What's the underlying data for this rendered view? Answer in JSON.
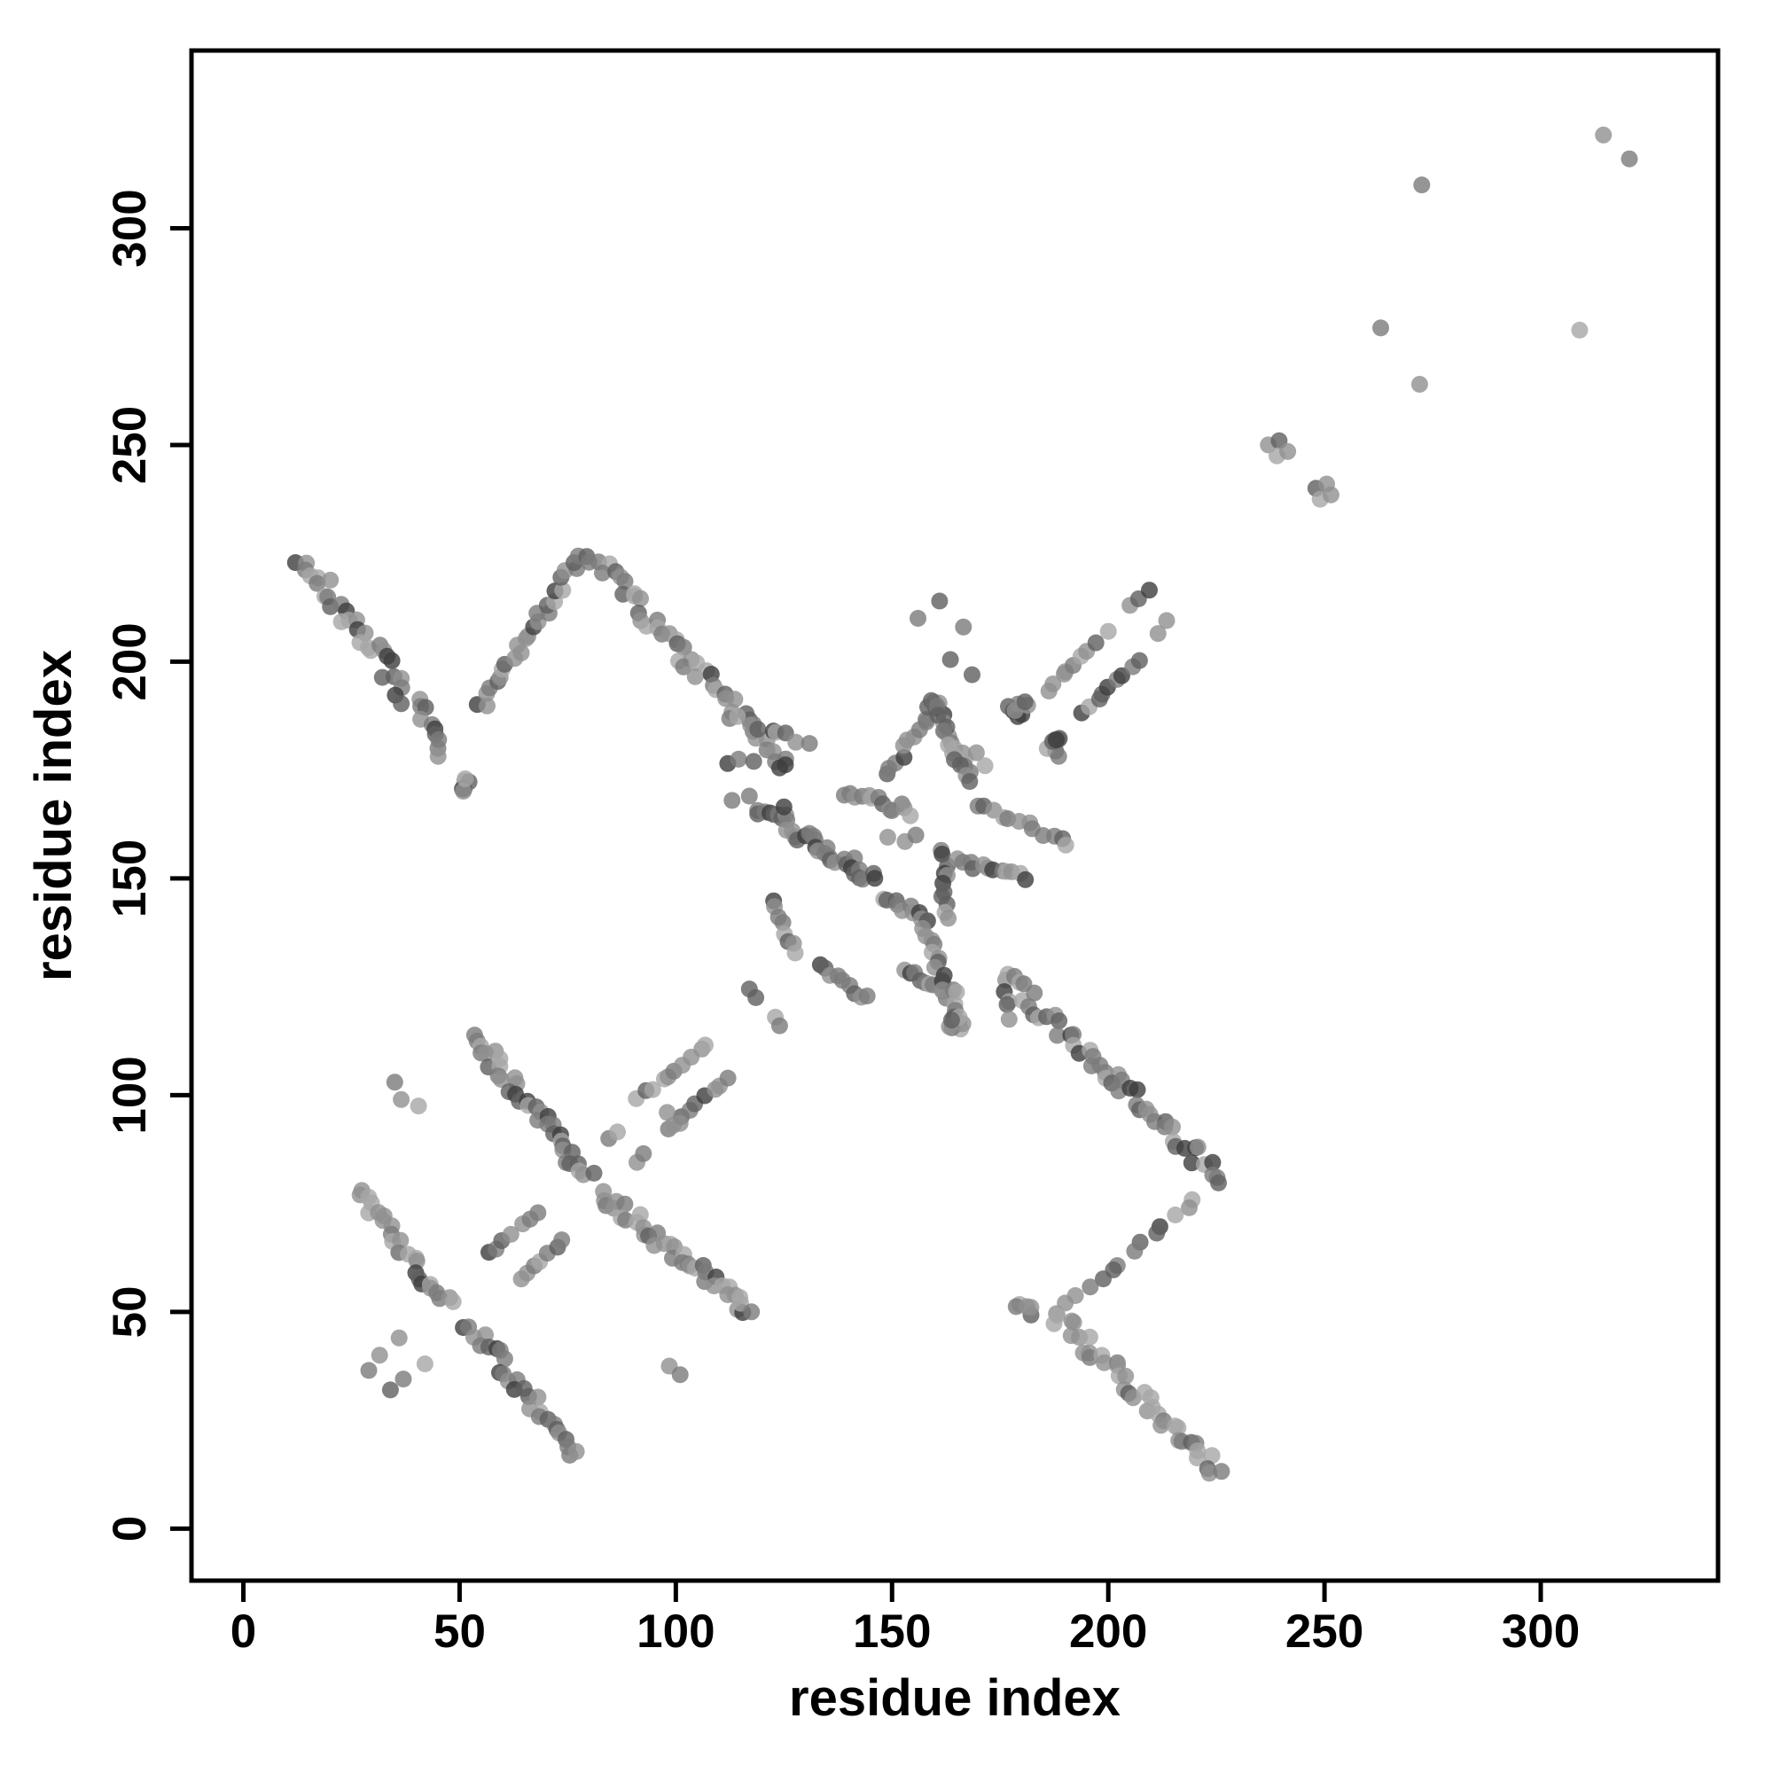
{
  "chart_data": {
    "type": "scatter",
    "title": "",
    "xlabel": "residue index",
    "ylabel": "residue index",
    "xlim": [
      -12,
      341
    ],
    "ylim": [
      -12,
      341
    ],
    "x_ticks": [
      "0",
      "50",
      "100",
      "150",
      "200",
      "250",
      "300"
    ],
    "x_tick_values": [
      0,
      50,
      100,
      150,
      200,
      250,
      300
    ],
    "y_ticks": [
      "0",
      "50",
      "100",
      "150",
      "200",
      "250",
      "300"
    ],
    "y_tick_values": [
      0,
      50,
      100,
      150,
      200,
      250,
      300
    ],
    "grid": false,
    "legend": null,
    "point_radius_px": 9.5,
    "point_opacity": 0.8,
    "palette": [
      "#a6a6a6",
      "#909090",
      "#7b7b7b",
      "#5f5f5f",
      "#3d3d3d"
    ],
    "seed": 7,
    "bands": [
      {
        "from": [
          13.5,
          224
        ],
        "to": [
          30,
          203
        ],
        "n": 20,
        "w": 4.2
      },
      {
        "from": [
          30,
          203
        ],
        "to": [
          47,
          179
        ],
        "n": 20,
        "w": 4.2,
        "dark": true
      },
      {
        "from": [
          55,
          189.5
        ],
        "to": [
          78,
          224
        ],
        "n": 26,
        "w": 3.0
      },
      {
        "from": [
          80,
          225
        ],
        "to": [
          103,
          200
        ],
        "n": 24,
        "w": 4.0
      },
      {
        "from": [
          103,
          200
        ],
        "to": [
          126,
          176
        ],
        "n": 22,
        "w": 4.0
      },
      {
        "from": [
          112,
          187
        ],
        "to": [
          131,
          181.5
        ],
        "n": 9,
        "w": 2.0
      },
      {
        "from": [
          119,
          166.5
        ],
        "to": [
          146,
          150
        ],
        "n": 34,
        "w": 3.6,
        "dark": true
      },
      {
        "from": [
          133,
          129.5
        ],
        "to": [
          144,
          122.5
        ],
        "n": 9,
        "w": 1.6
      },
      {
        "from": [
          122,
          144.5
        ],
        "to": [
          128,
          133
        ],
        "n": 8,
        "w": 1.6
      },
      {
        "from": [
          148,
          145
        ],
        "to": [
          158.5,
          141
        ],
        "n": 10,
        "w": 2.2,
        "dark": true
      },
      {
        "from": [
          157.5,
          140
        ],
        "to": [
          165.5,
          114.5
        ],
        "n": 20,
        "w": 2.0
      },
      {
        "from": [
          153,
          129
        ],
        "to": [
          165,
          124
        ],
        "n": 11,
        "w": 2.2,
        "dark": true
      },
      {
        "from": [
          162,
          156.5
        ],
        "to": [
          162.5,
          140.5
        ],
        "n": 11,
        "w": 1.8,
        "dark": true
      },
      {
        "from": [
          164.5,
          154
        ],
        "to": [
          181,
          150.5
        ],
        "n": 12,
        "w": 1.7
      },
      {
        "from": [
          139,
          169.5
        ],
        "to": [
          154.5,
          165.5
        ],
        "n": 13,
        "w": 2.4,
        "dark": true
      },
      {
        "from": [
          149,
          173.5
        ],
        "to": [
          160,
          190.5
        ],
        "n": 12,
        "w": 2.0
      },
      {
        "from": [
          160,
          190.5
        ],
        "to": [
          168,
          174.5
        ],
        "n": 12,
        "w": 2.0
      },
      {
        "from": [
          159,
          191
        ],
        "to": [
          167.5,
          172
        ],
        "n": 11,
        "w": 1.7
      },
      {
        "from": [
          170,
          167
        ],
        "to": [
          190.5,
          158.5
        ],
        "n": 12,
        "w": 2.2
      },
      {
        "from": [
          176,
          127.5
        ],
        "to": [
          177,
          117.5
        ],
        "n": 5,
        "w": 1.1
      },
      {
        "from": [
          53,
          113.5
        ],
        "to": [
          80,
          81
        ],
        "n": 36,
        "w": 4.0,
        "dark": true
      },
      {
        "from": [
          83,
          77.5
        ],
        "to": [
          116,
          50.5
        ],
        "n": 36,
        "w": 4.0
      },
      {
        "from": [
          26,
          77.5
        ],
        "to": [
          47.5,
          51.5
        ],
        "n": 26,
        "w": 3.4
      },
      {
        "from": [
          52,
          47.5
        ],
        "to": [
          77,
          17
        ],
        "n": 28,
        "w": 3.4,
        "dark": true
      },
      {
        "from": [
          57,
          63.5
        ],
        "to": [
          68,
          73
        ],
        "n": 7,
        "w": 1.0
      },
      {
        "from": [
          63.5,
          57
        ],
        "to": [
          74,
          66.5
        ],
        "n": 7,
        "w": 1.0
      },
      {
        "from": [
          91,
          99
        ],
        "to": [
          107.5,
          111.5
        ],
        "n": 10,
        "w": 1.0
      },
      {
        "from": [
          97.5,
          92
        ],
        "to": [
          112,
          104
        ],
        "n": 9,
        "w": 1.0
      },
      {
        "from": [
          176,
          127
        ],
        "to": [
          202,
          104
        ],
        "n": 24,
        "w": 4.0
      },
      {
        "from": [
          202,
          104
        ],
        "to": [
          226,
          80
        ],
        "n": 24,
        "w": 4.0,
        "dark": true
      },
      {
        "from": [
          220,
          75.5
        ],
        "to": [
          188,
          49.5
        ],
        "n": 14,
        "w": 1.4
      },
      {
        "from": [
          188,
          49
        ],
        "to": [
          226,
          13
        ],
        "n": 38,
        "w": 4.0
      },
      {
        "from": [
          186,
          193.5
        ],
        "to": [
          197,
          204.5
        ],
        "n": 8,
        "w": 0.9
      },
      {
        "from": [
          194,
          188
        ],
        "to": [
          207,
          200.5
        ],
        "n": 9,
        "w": 0.9
      }
    ],
    "blobs": [
      {
        "c": [
          51.5,
          171.5
        ],
        "r": 2.6,
        "n": 6
      },
      {
        "c": [
          165,
          116.5
        ],
        "r": 2.2,
        "n": 5
      },
      {
        "c": [
          179.5,
          189
        ],
        "r": 2.9,
        "n": 8,
        "dark": true
      },
      {
        "c": [
          188.5,
          180.5
        ],
        "r": 2.9,
        "n": 8,
        "dark": true
      },
      {
        "c": [
          180.5,
          51
        ],
        "r": 2.4,
        "n": 5
      }
    ],
    "points": [
      [
        112,
        176.5
      ],
      [
        114.5,
        177.5
      ],
      [
        118,
        177
      ],
      [
        124,
        175.5
      ],
      [
        113,
        168
      ],
      [
        117,
        169
      ],
      [
        125,
        166.5
      ],
      [
        149,
        159.5
      ],
      [
        153,
        158.5
      ],
      [
        155.5,
        160
      ],
      [
        117,
        124.5
      ],
      [
        118.5,
        122.5
      ],
      [
        123,
        118
      ],
      [
        124,
        116
      ],
      [
        156,
        210
      ],
      [
        161,
        214
      ],
      [
        166.5,
        208
      ],
      [
        163.5,
        200.5
      ],
      [
        168.5,
        197
      ],
      [
        169.5,
        179
      ],
      [
        171.5,
        176
      ],
      [
        84.5,
        90
      ],
      [
        86.5,
        91.5
      ],
      [
        91,
        84.5
      ],
      [
        92.5,
        86.5
      ],
      [
        98,
        96
      ],
      [
        101,
        93.5
      ],
      [
        36,
        44
      ],
      [
        31.5,
        40
      ],
      [
        29,
        36.5
      ],
      [
        42,
        38
      ],
      [
        37,
        34.5
      ],
      [
        34,
        32
      ],
      [
        35,
        103
      ],
      [
        36.5,
        99
      ],
      [
        40.5,
        97.5
      ],
      [
        98.5,
        37.5
      ],
      [
        101,
        35.5
      ],
      [
        115,
        52
      ],
      [
        117.5,
        50
      ],
      [
        200,
        207
      ],
      [
        205,
        213
      ],
      [
        207,
        214.5
      ],
      [
        209.5,
        216.5
      ],
      [
        211.5,
        206.5
      ],
      [
        213.5,
        209.5
      ],
      [
        237,
        250
      ],
      [
        239.5,
        251
      ],
      [
        239,
        247.5
      ],
      [
        241.5,
        248.5
      ],
      [
        248,
        240
      ],
      [
        250.5,
        241
      ],
      [
        249,
        237.5
      ],
      [
        251.5,
        238.5
      ],
      [
        272,
        264
      ],
      [
        263,
        277
      ],
      [
        272.5,
        310
      ],
      [
        309,
        276.5
      ],
      [
        314.5,
        321.5
      ],
      [
        320.5,
        316
      ]
    ]
  }
}
